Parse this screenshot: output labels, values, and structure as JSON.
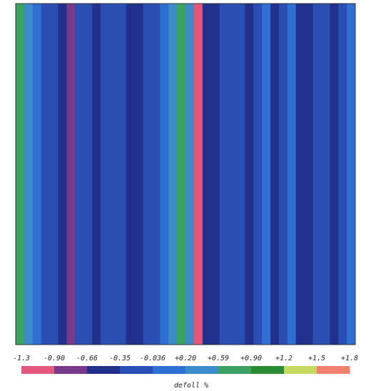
{
  "chart_data": {
    "type": "heatmap",
    "values": [
      0.7,
      0.3,
      0.0,
      -0.1,
      -0.2,
      -0.5,
      -0.7,
      -0.2,
      -0.1,
      -0.5,
      -0.3,
      -0.1,
      -0.2,
      -0.4,
      -0.6,
      -0.3,
      -0.1,
      0.1,
      0.3,
      0.7,
      0.3,
      -1.1,
      -0.5,
      -0.6,
      -0.2,
      -0.1,
      -0.3,
      -0.6,
      -0.2,
      0.0,
      -0.5,
      -0.1,
      0.1,
      -0.4,
      -0.6,
      -0.1,
      -0.3,
      -0.6,
      -0.1,
      0.0
    ],
    "colorbar": {
      "ticks": [
        -1.3,
        {
          "value": -0.9,
          "label": "-0.90"
        },
        -0.66,
        -0.35,
        -0.036,
        {
          "value": 0.2,
          "label": "+0.20"
        },
        {
          "value": 0.59,
          "label": "+0.59"
        },
        {
          "value": 0.9,
          "label": "+0.90"
        },
        {
          "value": 1.2,
          "label": "+1.2"
        },
        {
          "value": 1.5,
          "label": "+1.5"
        },
        {
          "value": 1.8,
          "label": "+1.8"
        }
      ],
      "colors": [
        "#e2587c",
        "#7a3a8c",
        "#22318c",
        "#2a4fb4",
        "#2f6fd2",
        "#3b8cc8",
        "#3ba264",
        "#2b8a34",
        "#c6d85e",
        "#f08070"
      ],
      "label": "defoll %"
    }
  }
}
